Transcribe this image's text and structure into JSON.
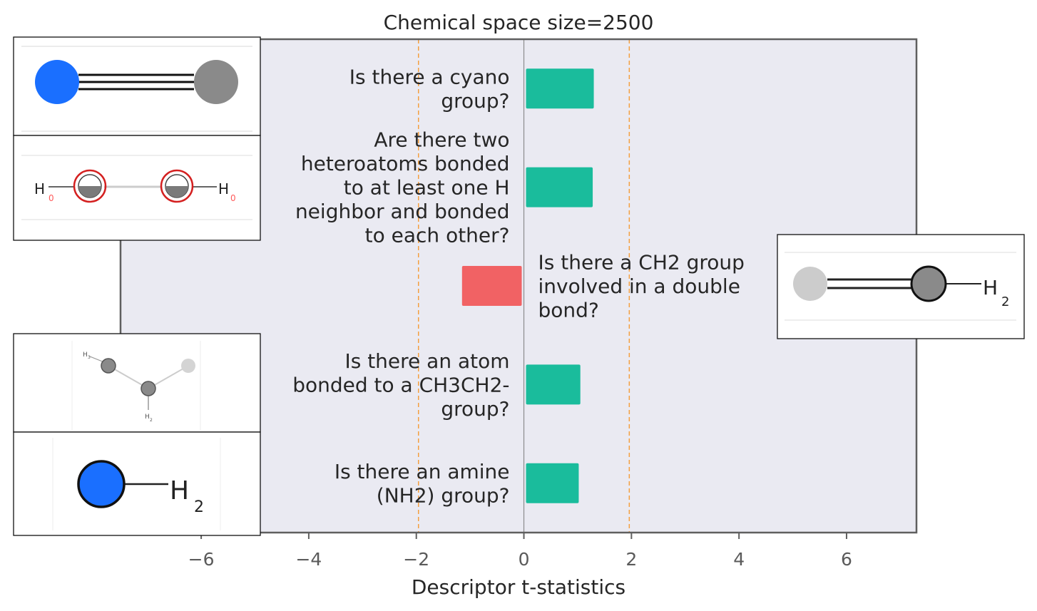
{
  "chart_data": {
    "type": "bar",
    "orientation": "horizontal",
    "title": "Chemical space size=2500",
    "xlabel": "Descriptor t-statistics",
    "ylabel": "",
    "xlim": [
      -7.5,
      7.3
    ],
    "xticks": [
      -6,
      -4,
      -2,
      0,
      2,
      4,
      6
    ],
    "xtick_labels": [
      "−6",
      "−4",
      "−2",
      "0",
      "2",
      "4",
      "6"
    ],
    "reference_lines": [
      -1.96,
      1.96
    ],
    "grid": false,
    "categories": [
      "Is there a cyano group?",
      "Are there two heteroatoms bonded to at least one H neighbor and bonded to each other?",
      "Is there a CH2 group involved in a double bond?",
      "Is there an atom bonded to a CH3CH2- group?",
      "Is there an amine (NH2) group?"
    ],
    "category_label_lines": [
      [
        "Is there a cyano",
        "group?"
      ],
      [
        "Are there two",
        "heteroatoms bonded",
        "to at least one H",
        "neighbor and bonded",
        "to each other?"
      ],
      [
        "Is there a CH2 group",
        "involved in a double",
        "bond?"
      ],
      [
        "Is there an atom",
        "bonded to a CH3CH2-",
        "group?"
      ],
      [
        "Is there an amine",
        "(NH2) group?"
      ]
    ],
    "values": [
      1.3,
      1.28,
      -1.15,
      1.05,
      1.02
    ],
    "colors": {
      "positive": "#1abc9c",
      "negative": "#f16264",
      "plot_background": "#eaeaf2",
      "reference_line": "#f5a040",
      "zero_line": "#8c8c8c",
      "frame": "#5f5f5f"
    }
  },
  "insets": [
    {
      "id": "cyano",
      "atoms": [
        "N",
        "C"
      ],
      "bond": "triple"
    },
    {
      "id": "hetero",
      "atoms": [
        "H",
        "H"
      ],
      "sub_labels": [
        "0",
        "0"
      ],
      "atom_labels": [
        "H",
        "H"
      ]
    },
    {
      "id": "ch2",
      "atoms": [
        "C",
        "C"
      ],
      "bond": "double",
      "h_label": "H",
      "h_sub": "2"
    },
    {
      "id": "ethyl",
      "atom_labels": [
        "H",
        "3",
        "H",
        "2"
      ]
    },
    {
      "id": "amine",
      "atoms": [
        "N"
      ],
      "h_label": "H",
      "h_sub": "2"
    }
  ]
}
